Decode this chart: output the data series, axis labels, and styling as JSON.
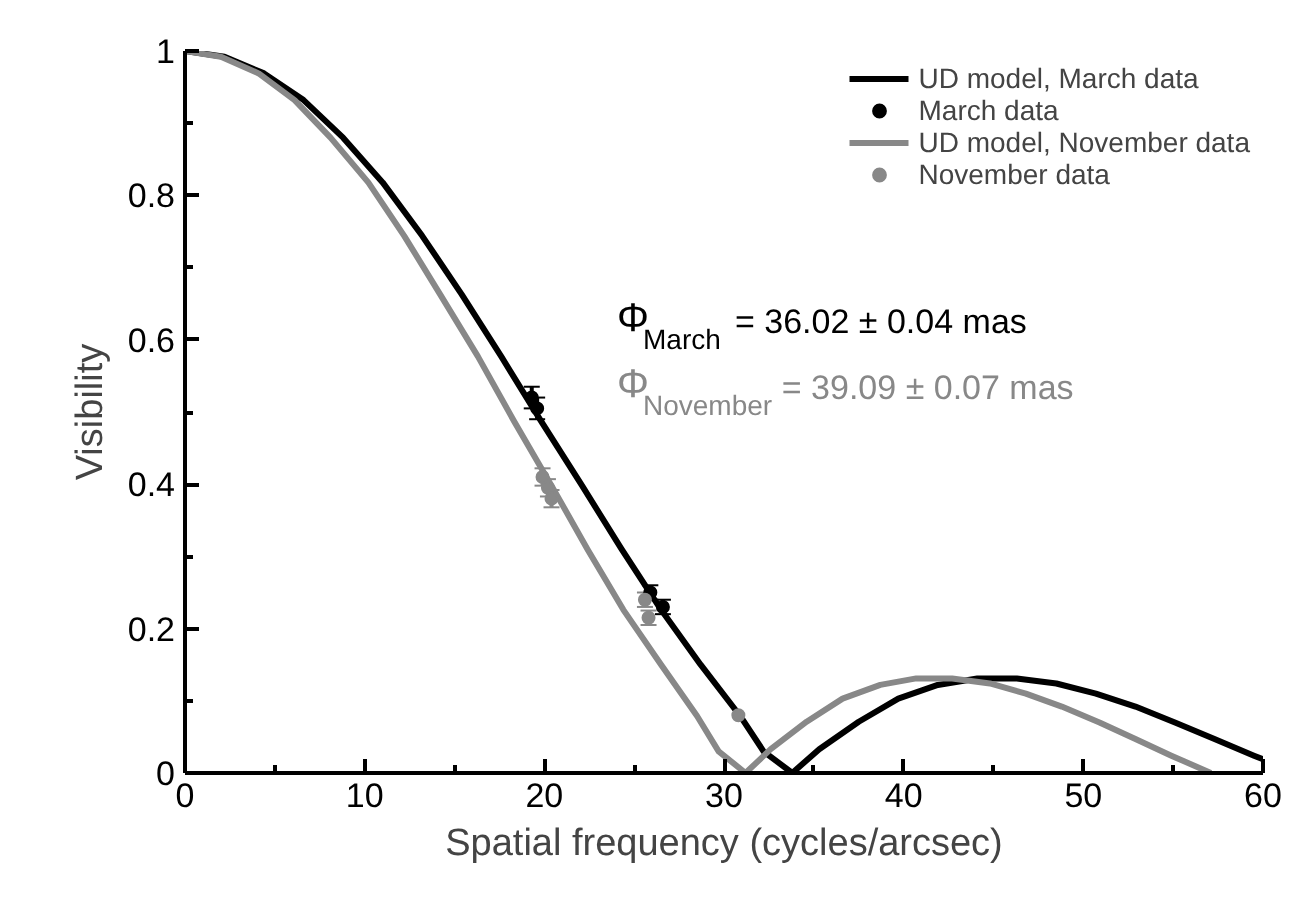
{
  "chart_data": {
    "type": "line",
    "xlabel": "Spatial frequency (cycles/arcsec)",
    "ylabel": "Visibility",
    "xlim": [
      0,
      60
    ],
    "ylim": [
      0,
      1
    ],
    "xticks": [
      0,
      {
        "value": 5,
        "label": null
      },
      10,
      {
        "value": 15,
        "label": null
      },
      20,
      {
        "value": 25,
        "label": null
      },
      30,
      {
        "value": 35,
        "label": null
      },
      40,
      {
        "value": 45,
        "label": null
      },
      50,
      {
        "value": 55,
        "label": null
      },
      60
    ],
    "yticks": [
      0,
      {
        "value": 0.1,
        "label": null
      },
      0.2,
      {
        "value": 0.3,
        "label": null
      },
      0.4,
      {
        "value": 0.5,
        "label": null
      },
      0.6,
      {
        "value": 0.7,
        "label": null
      },
      0.8,
      {
        "value": 0.9,
        "label": null
      },
      1
    ],
    "legend": "top right",
    "grid": false,
    "series": [
      {
        "name": "UD model, March data",
        "color": "#000000",
        "x": [
          0,
          2.2,
          4.4,
          6.6,
          8.8,
          11.0,
          13.2,
          15.4,
          17.6,
          19.8,
          22.1,
          24.3,
          26.5,
          28.7,
          30.9,
          32.2,
          33.8,
          35.3,
          37.5,
          39.7,
          41.9,
          44.1,
          46.3,
          48.5,
          50.7,
          52.9,
          55.1,
          57.3,
          59.5,
          60
        ],
        "values": [
          1,
          0.992,
          0.969,
          0.932,
          0.88,
          0.818,
          0.744,
          0.663,
          0.577,
          0.488,
          0.398,
          0.31,
          0.226,
          0.15,
          0.079,
          0.03,
          0,
          0.033,
          0.071,
          0.103,
          0.122,
          0.131,
          0.131,
          0.124,
          0.11,
          0.092,
          0.07,
          0.047,
          0.024,
          0.019
        ]
      },
      {
        "name": "March data",
        "type": "scatter",
        "marker": "circle",
        "color": "#000000",
        "x": [
          19.3,
          19.6,
          25.9,
          26.6
        ],
        "values": [
          0.52,
          0.505,
          0.25,
          0.23
        ],
        "errors": [
          0.015,
          0.015,
          0.01,
          0.01
        ]
      },
      {
        "name": "UD model, November data",
        "color": "#888888",
        "x": [
          0,
          2.0,
          4.1,
          6.1,
          8.1,
          10.2,
          12.2,
          14.2,
          16.3,
          18.3,
          20.4,
          22.4,
          24.4,
          26.5,
          28.5,
          29.7,
          31.2,
          32.6,
          34.6,
          36.6,
          38.7,
          40.7,
          42.7,
          44.8,
          46.8,
          48.8,
          50.9,
          52.9,
          54.9,
          57.1
        ],
        "values": [
          1,
          0.992,
          0.969,
          0.932,
          0.88,
          0.818,
          0.744,
          0.663,
          0.577,
          0.488,
          0.398,
          0.31,
          0.226,
          0.15,
          0.079,
          0.03,
          0,
          0.033,
          0.071,
          0.103,
          0.122,
          0.131,
          0.131,
          0.124,
          0.11,
          0.092,
          0.07,
          0.047,
          0.024,
          0
        ]
      },
      {
        "name": "November data",
        "type": "scatter",
        "marker": "circle",
        "color": "#888888",
        "x": [
          19.9,
          20.2,
          20.4,
          25.6,
          25.8,
          30.8
        ],
        "values": [
          0.41,
          0.395,
          0.38,
          0.24,
          0.215,
          0.08
        ],
        "errors": [
          0.012,
          0.012,
          0.012,
          0.01,
          0.01,
          null
        ]
      }
    ],
    "line_style": "solid",
    "annotations": [
      "Φ$_{March}$ = 36.02 ± 0.04 mas",
      "Φ$_{November}$ = 39.09 ± 0.07 mas"
    ]
  }
}
